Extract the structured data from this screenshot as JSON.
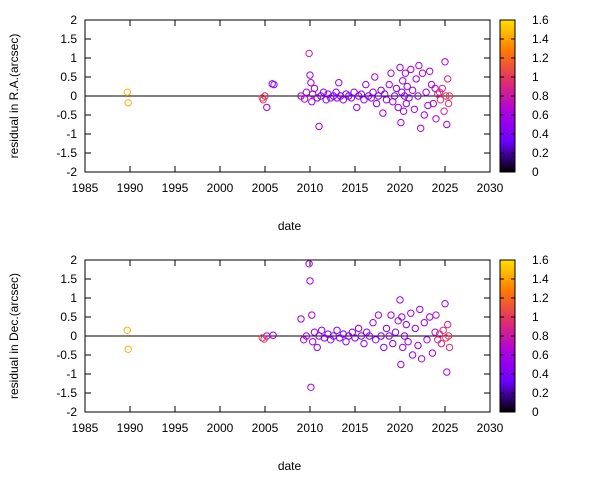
{
  "chart_data": [
    {
      "type": "scatter",
      "xlabel": "date",
      "ylabel": "residual in R.A.(arcsec)",
      "xlim": [
        1985,
        2030
      ],
      "ylim": [
        -2,
        2
      ],
      "xticks": [
        1985,
        1990,
        1995,
        2000,
        2005,
        2010,
        2015,
        2020,
        2025,
        2030
      ],
      "yticks": [
        -2,
        -1.5,
        -1,
        -0.5,
        0,
        0.5,
        1,
        1.5,
        2
      ],
      "ytick_labels": [
        "-2",
        "-1.5",
        "-1",
        "-0.5",
        "0",
        "0.5",
        "1",
        "1.5",
        "2"
      ],
      "zero_line": true,
      "colorbar": {
        "range": [
          0,
          1.6
        ],
        "ticks": [
          0,
          0.2,
          0.4,
          0.6,
          0.8,
          1,
          1.2,
          1.4,
          1.6
        ],
        "palette": [
          "#000000",
          "#6a00ff",
          "#b000e0",
          "#e0306a",
          "#ff7a00",
          "#ffe000"
        ]
      },
      "points": [
        [
          1989.7,
          0.1,
          1.45
        ],
        [
          1989.8,
          -0.18,
          1.45
        ],
        [
          2004.7,
          -0.05,
          1.05
        ],
        [
          2004.8,
          -0.1,
          1.0
        ],
        [
          2005.0,
          0.0,
          0.95
        ],
        [
          2005.2,
          -0.3,
          0.6
        ],
        [
          2005.8,
          0.32,
          0.5
        ],
        [
          2006.0,
          0.3,
          0.55
        ],
        [
          2009.0,
          0.0,
          0.6
        ],
        [
          2009.4,
          -0.08,
          0.55
        ],
        [
          2009.6,
          0.1,
          0.6
        ],
        [
          2009.9,
          1.12,
          0.8
        ],
        [
          2010.0,
          0.55,
          0.6
        ],
        [
          2010.1,
          0.35,
          0.6
        ],
        [
          2010.2,
          -0.15,
          0.55
        ],
        [
          2010.3,
          0.05,
          0.6
        ],
        [
          2010.5,
          0.2,
          0.5
        ],
        [
          2010.8,
          -0.05,
          0.5
        ],
        [
          2011.0,
          -0.8,
          0.6
        ],
        [
          2011.2,
          0.0,
          0.5
        ],
        [
          2011.5,
          0.1,
          0.5
        ],
        [
          2011.8,
          -0.1,
          0.45
        ],
        [
          2012.0,
          0.05,
          0.45
        ],
        [
          2012.3,
          -0.05,
          0.5
        ],
        [
          2012.6,
          0.0,
          0.45
        ],
        [
          2012.9,
          0.1,
          0.5
        ],
        [
          2013.0,
          -0.05,
          0.45
        ],
        [
          2013.2,
          0.35,
          0.5
        ],
        [
          2013.4,
          0.0,
          0.45
        ],
        [
          2013.7,
          -0.1,
          0.45
        ],
        [
          2014.0,
          0.05,
          0.45
        ],
        [
          2014.3,
          0.0,
          0.4
        ],
        [
          2014.6,
          -0.05,
          0.45
        ],
        [
          2014.9,
          0.1,
          0.45
        ],
        [
          2015.2,
          -0.3,
          0.5
        ],
        [
          2015.4,
          0.0,
          0.45
        ],
        [
          2015.7,
          0.05,
          0.45
        ],
        [
          2016.0,
          -0.1,
          0.45
        ],
        [
          2016.2,
          0.3,
          0.5
        ],
        [
          2016.5,
          0.0,
          0.45
        ],
        [
          2016.8,
          -0.05,
          0.45
        ],
        [
          2017.0,
          0.1,
          0.45
        ],
        [
          2017.2,
          0.5,
          0.6
        ],
        [
          2017.4,
          -0.2,
          0.5
        ],
        [
          2017.6,
          0.0,
          0.45
        ],
        [
          2017.9,
          0.15,
          0.45
        ],
        [
          2018.1,
          -0.45,
          0.55
        ],
        [
          2018.3,
          0.05,
          0.45
        ],
        [
          2018.5,
          -0.1,
          0.45
        ],
        [
          2018.8,
          0.3,
          0.55
        ],
        [
          2019.0,
          0.6,
          0.6
        ],
        [
          2019.2,
          -0.15,
          0.5
        ],
        [
          2019.4,
          0.0,
          0.45
        ],
        [
          2019.6,
          0.2,
          0.5
        ],
        [
          2019.8,
          -0.3,
          0.5
        ],
        [
          2020.0,
          0.75,
          0.6
        ],
        [
          2020.1,
          -0.7,
          0.6
        ],
        [
          2020.2,
          0.1,
          0.45
        ],
        [
          2020.3,
          0.4,
          0.55
        ],
        [
          2020.4,
          -0.4,
          0.55
        ],
        [
          2020.5,
          0.0,
          0.45
        ],
        [
          2020.6,
          0.6,
          0.6
        ],
        [
          2020.7,
          -0.2,
          0.5
        ],
        [
          2020.8,
          0.25,
          0.5
        ],
        [
          2021.0,
          -0.05,
          0.45
        ],
        [
          2021.2,
          0.7,
          0.6
        ],
        [
          2021.4,
          0.15,
          0.5
        ],
        [
          2021.6,
          -0.35,
          0.55
        ],
        [
          2021.8,
          0.45,
          0.55
        ],
        [
          2022.0,
          0.0,
          0.5
        ],
        [
          2022.1,
          0.8,
          0.6
        ],
        [
          2022.3,
          -0.85,
          0.6
        ],
        [
          2022.5,
          0.6,
          0.6
        ],
        [
          2022.7,
          -0.5,
          0.55
        ],
        [
          2022.9,
          0.1,
          0.5
        ],
        [
          2023.1,
          -0.25,
          0.55
        ],
        [
          2023.3,
          0.65,
          0.6
        ],
        [
          2023.5,
          0.3,
          0.6
        ],
        [
          2023.7,
          -0.2,
          0.6
        ],
        [
          2023.9,
          0.2,
          0.65
        ],
        [
          2024.0,
          -0.6,
          0.65
        ],
        [
          2024.2,
          0.05,
          0.85
        ],
        [
          2024.4,
          0.1,
          0.9
        ],
        [
          2024.5,
          -0.1,
          0.95
        ],
        [
          2024.7,
          0.2,
          0.9
        ],
        [
          2024.9,
          -0.4,
          0.85
        ],
        [
          2025.0,
          0.9,
          0.6
        ],
        [
          2025.1,
          0.0,
          1.0
        ],
        [
          2025.2,
          -0.75,
          0.6
        ],
        [
          2025.3,
          0.45,
          0.9
        ],
        [
          2025.4,
          -0.2,
          0.95
        ],
        [
          2025.5,
          0.0,
          1.0
        ]
      ]
    },
    {
      "type": "scatter",
      "xlabel": "date",
      "ylabel": "residual in Dec.(arcsec)",
      "xlim": [
        1985,
        2030
      ],
      "ylim": [
        -2,
        2
      ],
      "xticks": [
        1985,
        1990,
        1995,
        2000,
        2005,
        2010,
        2015,
        2020,
        2025,
        2030
      ],
      "yticks": [
        -2,
        -1.5,
        -1,
        -0.5,
        0,
        0.5,
        1,
        1.5,
        2
      ],
      "ytick_labels": [
        "-2",
        "-1.5",
        "-1",
        "-0.5",
        "0",
        "0.5",
        "1",
        "1.5",
        "2"
      ],
      "zero_line": true,
      "colorbar": {
        "range": [
          0,
          1.6
        ],
        "ticks": [
          0,
          0.2,
          0.4,
          0.6,
          0.8,
          1,
          1.2,
          1.4,
          1.6
        ],
        "palette": [
          "#000000",
          "#6a00ff",
          "#b000e0",
          "#e0306a",
          "#ff7a00",
          "#ffe000"
        ]
      },
      "points": [
        [
          1989.7,
          0.15,
          1.45
        ],
        [
          1989.8,
          -0.35,
          1.45
        ],
        [
          2004.7,
          -0.05,
          1.05
        ],
        [
          2004.9,
          -0.08,
          1.0
        ],
        [
          2005.2,
          0.0,
          0.7
        ],
        [
          2005.9,
          0.02,
          0.55
        ],
        [
          2009.0,
          0.45,
          0.55
        ],
        [
          2009.3,
          -0.1,
          0.55
        ],
        [
          2009.6,
          0.0,
          0.6
        ],
        [
          2009.9,
          1.9,
          0.6
        ],
        [
          2010.0,
          1.45,
          0.6
        ],
        [
          2010.1,
          -1.35,
          0.6
        ],
        [
          2010.2,
          0.55,
          0.6
        ],
        [
          2010.3,
          -0.15,
          0.55
        ],
        [
          2010.5,
          0.1,
          0.5
        ],
        [
          2010.8,
          -0.3,
          0.55
        ],
        [
          2011.0,
          0.0,
          0.5
        ],
        [
          2011.3,
          0.15,
          0.5
        ],
        [
          2011.6,
          -0.05,
          0.5
        ],
        [
          2012.0,
          0.05,
          0.45
        ],
        [
          2012.3,
          -0.1,
          0.5
        ],
        [
          2012.6,
          0.0,
          0.45
        ],
        [
          2013.0,
          0.15,
          0.5
        ],
        [
          2013.3,
          -0.05,
          0.45
        ],
        [
          2013.7,
          0.05,
          0.45
        ],
        [
          2014.0,
          -0.15,
          0.5
        ],
        [
          2014.3,
          0.0,
          0.45
        ],
        [
          2014.7,
          0.1,
          0.45
        ],
        [
          2015.0,
          -0.05,
          0.45
        ],
        [
          2015.4,
          0.2,
          0.5
        ],
        [
          2015.7,
          0.0,
          0.45
        ],
        [
          2016.0,
          -0.2,
          0.5
        ],
        [
          2016.3,
          0.1,
          0.45
        ],
        [
          2016.6,
          0.0,
          0.45
        ],
        [
          2017.0,
          0.35,
          0.55
        ],
        [
          2017.3,
          -0.1,
          0.45
        ],
        [
          2017.6,
          0.55,
          0.6
        ],
        [
          2017.9,
          0.0,
          0.45
        ],
        [
          2018.2,
          -0.3,
          0.5
        ],
        [
          2018.5,
          0.2,
          0.5
        ],
        [
          2018.8,
          0.0,
          0.45
        ],
        [
          2019.0,
          0.55,
          0.6
        ],
        [
          2019.2,
          -0.2,
          0.5
        ],
        [
          2019.5,
          0.1,
          0.45
        ],
        [
          2019.8,
          0.4,
          0.55
        ],
        [
          2020.0,
          0.95,
          0.6
        ],
        [
          2020.1,
          -0.75,
          0.6
        ],
        [
          2020.2,
          0.5,
          0.55
        ],
        [
          2020.3,
          -0.3,
          0.55
        ],
        [
          2020.5,
          0.0,
          0.45
        ],
        [
          2020.7,
          0.3,
          0.5
        ],
        [
          2020.9,
          -0.15,
          0.5
        ],
        [
          2021.2,
          0.6,
          0.6
        ],
        [
          2021.4,
          -0.5,
          0.55
        ],
        [
          2021.7,
          0.2,
          0.5
        ],
        [
          2022.0,
          -0.25,
          0.5
        ],
        [
          2022.2,
          0.7,
          0.6
        ],
        [
          2022.4,
          -0.6,
          0.55
        ],
        [
          2022.7,
          0.35,
          0.55
        ],
        [
          2023.0,
          -0.1,
          0.55
        ],
        [
          2023.3,
          0.5,
          0.6
        ],
        [
          2023.6,
          -0.45,
          0.6
        ],
        [
          2023.9,
          0.1,
          0.65
        ],
        [
          2024.0,
          0.55,
          0.7
        ],
        [
          2024.2,
          -0.1,
          0.85
        ],
        [
          2024.4,
          0.05,
          0.9
        ],
        [
          2024.6,
          -0.2,
          0.9
        ],
        [
          2024.8,
          0.15,
          0.95
        ],
        [
          2025.0,
          0.85,
          0.6
        ],
        [
          2025.1,
          -0.05,
          1.0
        ],
        [
          2025.2,
          -0.95,
          0.6
        ],
        [
          2025.3,
          0.3,
          0.9
        ],
        [
          2025.4,
          0.0,
          1.0
        ],
        [
          2025.5,
          -0.3,
          0.95
        ]
      ]
    }
  ]
}
